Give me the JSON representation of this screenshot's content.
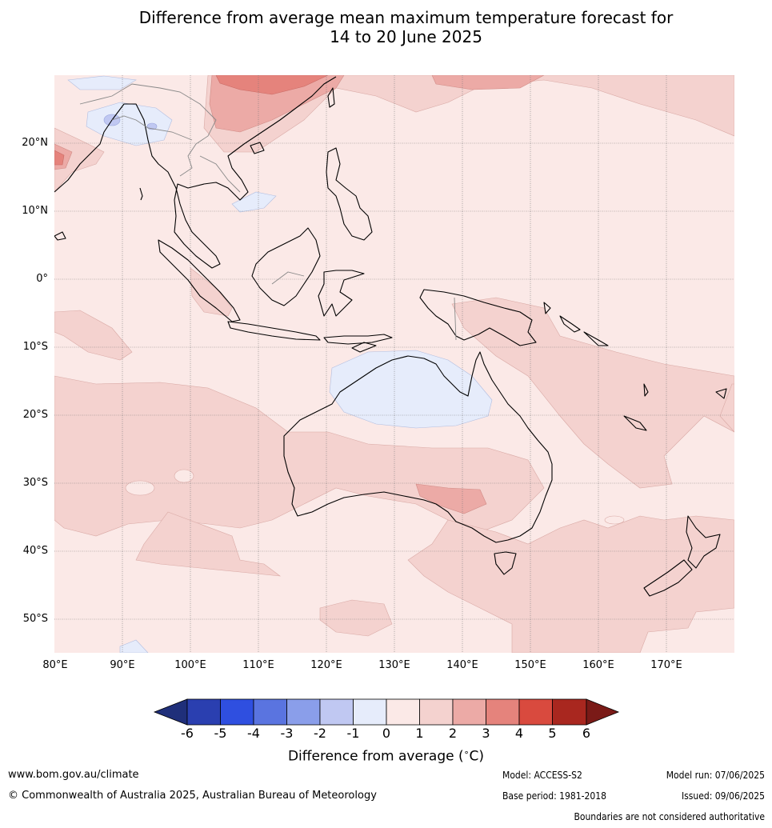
{
  "title": {
    "line1": "Difference from average mean maximum temperature forecast for",
    "line2": "14 to 20 June 2025"
  },
  "map": {
    "region": "Maritime Continent, Australia and south-west Pacific",
    "lat_labels": [
      "20°N",
      "10°N",
      "0°",
      "10°S",
      "20°S",
      "30°S",
      "40°S",
      "50°S"
    ],
    "lon_labels": [
      "80°E",
      "90°E",
      "100°E",
      "110°E",
      "120°E",
      "130°E",
      "140°E",
      "150°E",
      "160°E",
      "170°E"
    ],
    "background_anomaly_color": "#fbe9e7"
  },
  "colorbar": {
    "ticks": [
      "-6",
      "-5",
      "-4",
      "-3",
      "-2",
      "-1",
      "0",
      "1",
      "2",
      "3",
      "4",
      "5",
      "6"
    ],
    "colors": [
      "#1f2f7a",
      "#2a3fb0",
      "#2f4fe0",
      "#5a74e0",
      "#8a9eea",
      "#c0c8f2",
      "#e6ecfb",
      "#fbe9e7",
      "#f4d2cf",
      "#ecaaa6",
      "#e5837c",
      "#d94a3e",
      "#a9271f",
      "#7a1a17"
    ],
    "label": "Difference from average (°C)",
    "label_prefix": "Difference from average (",
    "label_degree": "∘",
    "label_suffix": "C)"
  },
  "footer": {
    "website": "www.bom.gov.au/climate",
    "copyright": "© Commonwealth of Australia 2025, Australian Bureau of Meteorology",
    "model": "Model: ACCESS-S2",
    "base_period": "Base period: 1981-2018",
    "model_run": "Model run: 07/06/2025",
    "issued": "Issued: 09/06/2025",
    "disclaimer": "Boundaries are not considered authoritative"
  }
}
